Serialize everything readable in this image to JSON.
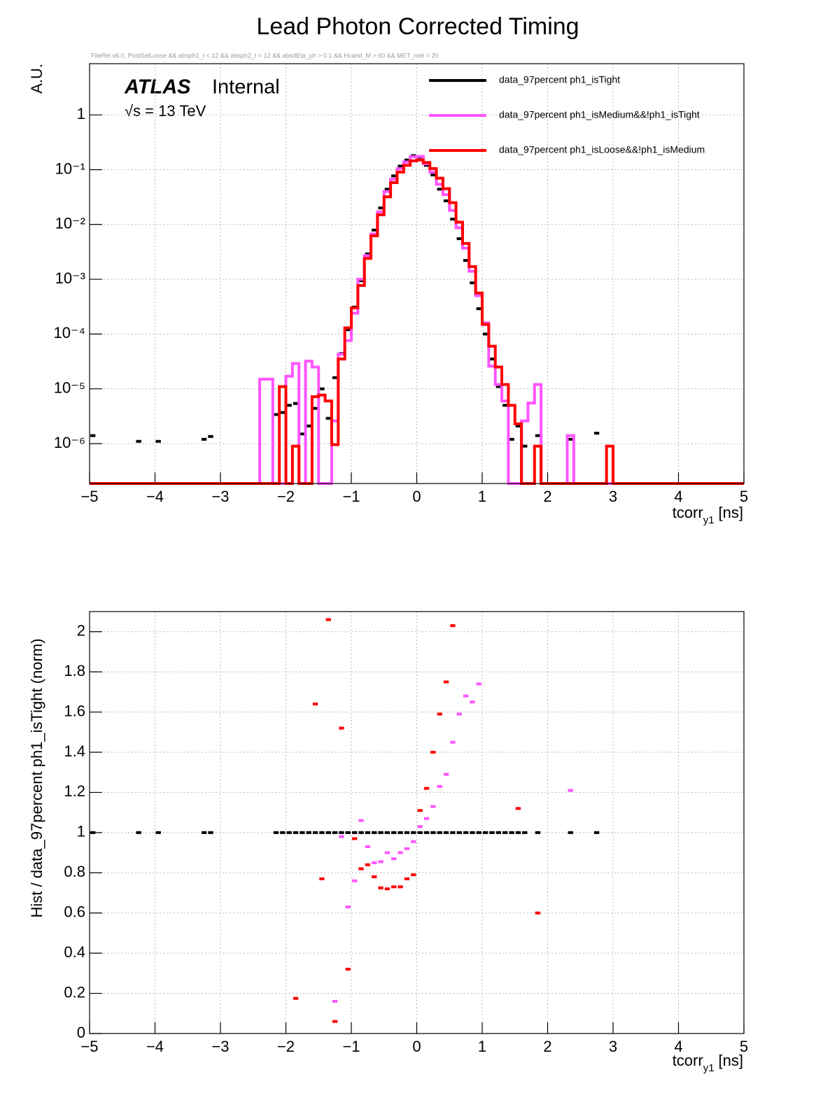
{
  "chart_data": [
    {
      "type": "histogram",
      "title": "Lead Photon Corrected Timing",
      "subtitle": "FileRel v6.0, PostSelLoose &&  absph1_t < 12 && absph2_t < 12 && absdEta_ph > 0.1 && Hcand_M > 60 && MET_met < 20",
      "annotations": {
        "experiment": "ATLAS",
        "status": "Internal",
        "energy": "√s = 13 TeV"
      },
      "ylabel": "A.U.",
      "xlabel": "tcorr",
      "xlabel_sub": "y1",
      "xlabel_unit": "[ns]",
      "log_y": true,
      "grid": true,
      "legend": "top-right",
      "xlim": [
        -5,
        5
      ],
      "ylim": [
        1.87e-07,
        8.6
      ],
      "xticks": [
        {
          "value": -5,
          "label": "−5"
        },
        {
          "value": -4,
          "label": "−4"
        },
        {
          "value": -3,
          "label": "−3"
        },
        {
          "value": -2,
          "label": "−2"
        },
        {
          "value": -1,
          "label": "−1"
        },
        0,
        1,
        2,
        3,
        4,
        5
      ],
      "yticks": [
        {
          "value": 1e-06,
          "label": "10⁻⁶"
        },
        {
          "value": 1e-05,
          "label": "10⁻⁵"
        },
        {
          "value": 0.0001,
          "label": "10⁻⁴"
        },
        {
          "value": 0.001,
          "label": "10⁻³"
        },
        {
          "value": 0.01,
          "label": "10⁻²"
        },
        {
          "value": 0.1,
          "label": "10⁻¹"
        },
        1
      ],
      "bins": [
        -5,
        -4.9,
        -4.8,
        -4.7,
        -4.6,
        -4.5,
        -4.4,
        -4.3,
        -4.2,
        -4.1,
        -4,
        -3.9,
        -3.8,
        -3.7,
        -3.6,
        -3.5,
        -3.4,
        -3.3,
        -3.2,
        -3.1,
        -3,
        -2.9,
        -2.8,
        -2.7,
        -2.6,
        -2.5,
        -2.4,
        -2.3,
        -2.2,
        -2.1,
        -2,
        -1.9,
        -1.8,
        -1.7,
        -1.6,
        -1.5,
        -1.4,
        -1.3,
        -1.2,
        -1.1,
        -1,
        -0.9,
        -0.8,
        -0.7,
        -0.6,
        -0.5,
        -0.4,
        -0.3,
        -0.2,
        -0.1,
        0,
        0.1,
        0.2,
        0.3,
        0.4,
        0.5,
        0.6,
        0.7,
        0.8,
        0.9,
        1,
        1.1,
        1.2,
        1.3,
        1.4,
        1.5,
        1.6,
        1.7,
        1.8,
        1.9,
        2,
        2.1,
        2.2,
        2.3,
        2.4,
        2.5,
        2.6,
        2.7,
        2.8,
        2.9,
        3,
        3.1,
        3.2,
        3.3,
        3.4,
        3.5,
        3.6,
        3.7,
        3.8,
        3.9,
        4,
        4.1,
        4.2,
        4.3,
        4.4,
        4.5,
        4.6,
        4.7,
        4.8,
        4.9,
        5
      ],
      "series": [
        {
          "name": "data_97percent  ph1_isTight",
          "color": "#000000",
          "style": "marker",
          "values": [
            1.4e-06,
            null,
            null,
            null,
            null,
            null,
            null,
            1.1e-06,
            null,
            null,
            1.1e-06,
            null,
            null,
            null,
            null,
            null,
            null,
            1.2e-06,
            1.35e-06,
            null,
            null,
            null,
            null,
            null,
            null,
            null,
            null,
            null,
            3.4e-06,
            3.7e-06,
            5e-06,
            5.4e-06,
            1.5e-06,
            2.1e-06,
            4.4e-06,
            1e-05,
            2.9e-06,
            1.6e-05,
            4.4e-05,
            0.00012,
            0.00031,
            0.00094,
            0.0029,
            0.0079,
            0.02,
            0.044,
            0.077,
            0.116,
            0.15,
            0.18,
            0.17,
            0.12,
            0.08,
            0.044,
            0.027,
            0.0125,
            0.0055,
            0.0022,
            0.00086,
            0.00029,
            0.0001,
            3.5e-05,
            1.1e-05,
            5e-06,
            1.2e-06,
            2.1e-06,
            9e-07,
            null,
            1.4e-06,
            null,
            null,
            null,
            null,
            1.2e-06,
            null,
            null,
            null,
            1.55e-06,
            null,
            null,
            null,
            null,
            null,
            null,
            null,
            null,
            null,
            null,
            null,
            null,
            null,
            null,
            null,
            null,
            null,
            null,
            null,
            null,
            null,
            null
          ]
        },
        {
          "name": "data_97percent  ph1_isMedium&&!ph1_isTight",
          "color": "#ff55ff",
          "style": "step",
          "values": [
            0,
            0,
            0,
            0,
            0,
            0,
            0,
            0,
            0,
            0,
            0,
            0,
            0,
            0,
            0,
            0,
            0,
            0,
            0,
            0,
            0,
            0,
            0,
            0,
            0,
            0,
            1.5e-05,
            1.5e-05,
            0,
            0,
            1.7e-05,
            2.9e-05,
            0,
            3.2e-05,
            2.5e-05,
            0,
            0,
            2.6e-06,
            4.3e-05,
            7.6e-05,
            0.00024,
            0.001,
            0.0027,
            0.0067,
            0.017,
            0.04,
            0.067,
            0.104,
            0.138,
            0.172,
            0.175,
            0.128,
            0.09,
            0.054,
            0.035,
            0.018,
            0.0087,
            0.0037,
            0.0014,
            0.0005,
            0.00016,
            2.6e-05,
            1.2e-05,
            6e-06,
            0,
            0,
            2.6e-06,
            5.5e-06,
            1.2e-05,
            0,
            0,
            0,
            0,
            1.4e-06,
            0,
            0,
            0,
            0,
            0,
            0,
            0,
            0,
            0,
            0,
            0,
            0,
            0,
            0,
            0,
            0,
            0,
            0,
            0,
            0,
            0,
            0,
            0,
            0,
            0,
            0
          ]
        },
        {
          "name": "data_97percent  ph1_isLoose&&!ph1_isMedium",
          "color": "#ff0000",
          "style": "step",
          "values": [
            0,
            0,
            0,
            0,
            0,
            0,
            0,
            0,
            0,
            0,
            0,
            0,
            0,
            0,
            0,
            0,
            0,
            0,
            0,
            0,
            0,
            0,
            0,
            0,
            0,
            0,
            0,
            0,
            0,
            1.1e-05,
            0,
            9e-07,
            0,
            0,
            7.2e-06,
            7.7e-06,
            6e-06,
            9.6e-07,
            3.5e-05,
            0.00013,
            0.0003,
            0.00077,
            0.0024,
            0.0062,
            0.015,
            0.032,
            0.058,
            0.09,
            0.12,
            0.145,
            0.15,
            0.135,
            0.105,
            0.07,
            0.045,
            0.025,
            0.011,
            0.0045,
            0.0017,
            0.00056,
            0.00015,
            6e-05,
            2.5e-05,
            1.2e-05,
            5e-06,
            2.3e-06,
            0,
            0,
            9e-07,
            0,
            0,
            0,
            0,
            0,
            0,
            0,
            0,
            0,
            0,
            9e-07,
            0,
            0,
            0,
            0,
            0,
            0,
            0,
            0,
            0,
            0,
            0,
            0,
            0,
            0,
            0,
            0,
            0,
            0,
            0,
            0
          ]
        }
      ]
    },
    {
      "type": "histogram",
      "ylabel": "Hist / data_97percent  ph1_isTight (norm)",
      "xlabel": "tcorr",
      "xlabel_sub": "y1",
      "xlabel_unit": "[ns]",
      "log_y": false,
      "grid": true,
      "xlim": [
        -5,
        5
      ],
      "ylim": [
        0,
        2.1
      ],
      "xticks": [
        {
          "value": -5,
          "label": "−5"
        },
        {
          "value": -4,
          "label": "−4"
        },
        {
          "value": -3,
          "label": "−3"
        },
        {
          "value": -2,
          "label": "−2"
        },
        {
          "value": -1,
          "label": "−1"
        },
        0,
        1,
        2,
        3,
        4,
        5
      ],
      "yticks": [
        0,
        0.2,
        0.4,
        0.6,
        0.8,
        1,
        1.2,
        1.4,
        1.6,
        1.8,
        2
      ],
      "bins": [
        -5,
        -4.9,
        -4.8,
        -4.7,
        -4.6,
        -4.5,
        -4.4,
        -4.3,
        -4.2,
        -4.1,
        -4,
        -3.9,
        -3.8,
        -3.7,
        -3.6,
        -3.5,
        -3.4,
        -3.3,
        -3.2,
        -3.1,
        -3,
        -2.9,
        -2.8,
        -2.7,
        -2.6,
        -2.5,
        -2.4,
        -2.3,
        -2.2,
        -2.1,
        -2,
        -1.9,
        -1.8,
        -1.7,
        -1.6,
        -1.5,
        -1.4,
        -1.3,
        -1.2,
        -1.1,
        -1,
        -0.9,
        -0.8,
        -0.7,
        -0.6,
        -0.5,
        -0.4,
        -0.3,
        -0.2,
        -0.1,
        0,
        0.1,
        0.2,
        0.3,
        0.4,
        0.5,
        0.6,
        0.7,
        0.8,
        0.9,
        1,
        1.1,
        1.2,
        1.3,
        1.4,
        1.5,
        1.6,
        1.7,
        1.8,
        1.9,
        2,
        2.1,
        2.2,
        2.3,
        2.4,
        2.5,
        2.6,
        2.7,
        2.8,
        2.9,
        3,
        3.1,
        3.2,
        3.3,
        3.4,
        3.5,
        3.6,
        3.7,
        3.8,
        3.9,
        4,
        4.1,
        4.2,
        4.3,
        4.4,
        4.5,
        4.6,
        4.7,
        4.8,
        4.9,
        5
      ],
      "series": [
        {
          "color": "#000000",
          "style": "marker",
          "values": [
            1,
            null,
            null,
            null,
            null,
            null,
            null,
            1,
            null,
            null,
            1,
            null,
            null,
            null,
            null,
            null,
            null,
            1,
            1,
            null,
            null,
            null,
            null,
            null,
            null,
            null,
            null,
            null,
            1,
            1,
            1,
            1,
            1,
            1,
            1,
            1,
            1,
            1,
            1,
            1,
            1,
            1,
            1,
            1,
            1,
            1,
            1,
            1,
            1,
            1,
            1,
            1,
            1,
            1,
            1,
            1,
            1,
            1,
            1,
            1,
            1,
            1,
            1,
            1,
            1,
            1,
            1,
            null,
            1,
            null,
            null,
            null,
            null,
            1,
            null,
            null,
            null,
            1,
            null,
            null,
            null,
            null,
            null,
            null,
            null,
            null,
            null,
            null,
            null,
            null,
            null,
            null,
            null,
            null,
            null,
            null,
            null,
            null,
            null,
            null
          ]
        },
        {
          "color": "#ff55ff",
          "style": "marker",
          "values": [
            null,
            null,
            null,
            null,
            null,
            null,
            null,
            null,
            null,
            null,
            null,
            null,
            null,
            null,
            null,
            null,
            null,
            null,
            null,
            null,
            null,
            null,
            null,
            null,
            null,
            null,
            null,
            null,
            null,
            null,
            null,
            null,
            null,
            null,
            null,
            null,
            null,
            0.16,
            0.98,
            0.63,
            0.76,
            1.06,
            0.93,
            0.85,
            0.855,
            0.9,
            0.87,
            0.9,
            0.92,
            0.955,
            1.03,
            1.07,
            1.13,
            1.23,
            1.29,
            1.45,
            1.59,
            1.68,
            1.65,
            1.74,
            null,
            null,
            null,
            null,
            null,
            null,
            null,
            null,
            null,
            null,
            null,
            null,
            null,
            1.21,
            null,
            null,
            null,
            null,
            null,
            null,
            null,
            null,
            null,
            null,
            null,
            null,
            null,
            null,
            null,
            null,
            null,
            null,
            null,
            null,
            null,
            null
          ]
        },
        {
          "color": "#ff0000",
          "style": "marker",
          "values": [
            null,
            null,
            null,
            null,
            null,
            null,
            null,
            null,
            null,
            null,
            null,
            null,
            null,
            null,
            null,
            null,
            null,
            null,
            null,
            null,
            null,
            null,
            null,
            null,
            null,
            null,
            null,
            null,
            null,
            null,
            null,
            0.175,
            null,
            null,
            1.64,
            0.77,
            2.06,
            0.06,
            1.52,
            0.32,
            0.97,
            0.82,
            0.84,
            0.78,
            0.725,
            0.72,
            0.73,
            0.73,
            0.77,
            0.79,
            1.11,
            1.22,
            1.4,
            1.59,
            1.75,
            2.03,
            null,
            null,
            null,
            null,
            null,
            null,
            null,
            null,
            null,
            1.12,
            null,
            null,
            0.6,
            null,
            null,
            null,
            null,
            null,
            null,
            null,
            null,
            null,
            null,
            null,
            null,
            null,
            null,
            null,
            null,
            null,
            null,
            null,
            null,
            null,
            null,
            null,
            null,
            null,
            null,
            null,
            null,
            null,
            null,
            null
          ]
        }
      ]
    }
  ]
}
